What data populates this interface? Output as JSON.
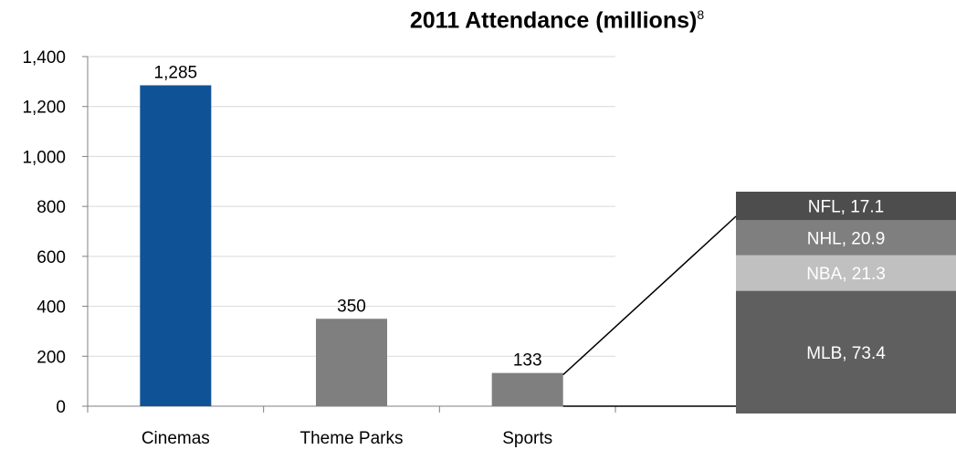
{
  "chart_data": {
    "type": "bar",
    "title": "2011 Attendance (millions)",
    "title_footnote": "8",
    "xlabel": "",
    "ylabel": "",
    "ylim": [
      0,
      1400
    ],
    "yticks": [
      0,
      200,
      400,
      600,
      800,
      1000,
      1200,
      1400
    ],
    "ytick_labels": [
      "0",
      "200",
      "400",
      "600",
      "800",
      "1,000",
      "1,200",
      "1,400"
    ],
    "grid": true,
    "categories": [
      "Cinemas",
      "Theme Parks",
      "Sports"
    ],
    "values": [
      1285,
      350,
      133
    ],
    "value_labels": [
      "1,285",
      "350",
      "133"
    ],
    "bar_colors": [
      "#0f5396",
      "#7f7f7f",
      "#7f7f7f"
    ],
    "breakdown": {
      "of_category": "Sports",
      "segments_bottom_to_top": [
        {
          "label": "MLB, 73.4",
          "value": 73.4,
          "color": "#5f5f5f"
        },
        {
          "label": "NBA, 21.3",
          "value": 21.3,
          "color": "#c0c0c0"
        },
        {
          "label": "NHL, 20.9",
          "value": 20.9,
          "color": "#7f7f7f"
        },
        {
          "label": "NFL, 17.1",
          "value": 17.1,
          "color": "#4d4d4d"
        }
      ]
    }
  }
}
